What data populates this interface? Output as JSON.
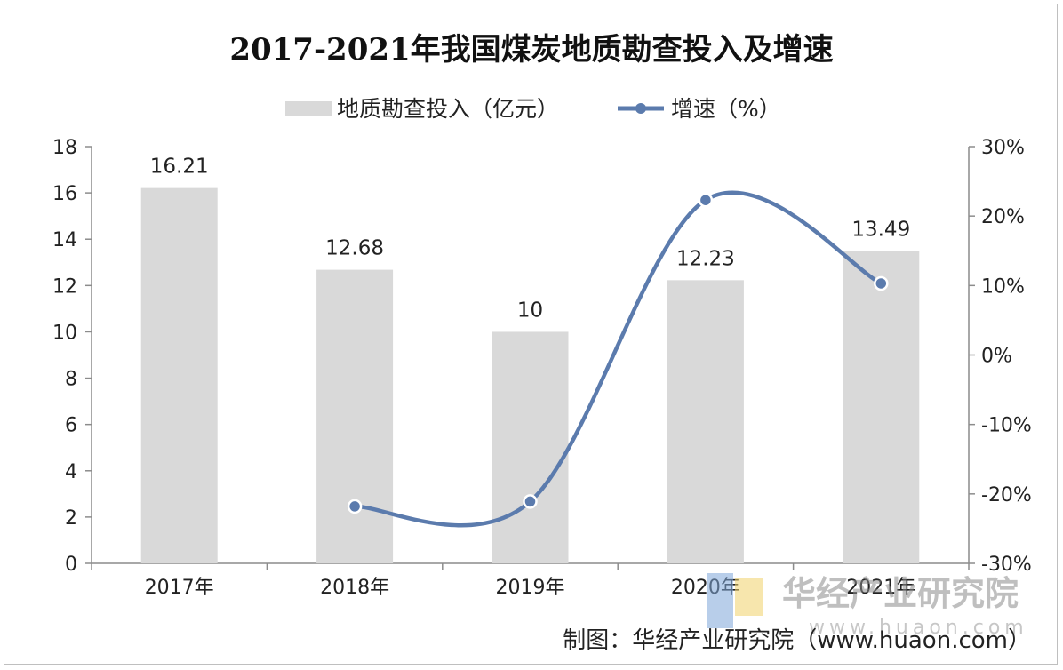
{
  "chart_data": {
    "type": "bar",
    "title": "2017-2021年我国煤炭地质勘查投入及增速",
    "categories": [
      "2017年",
      "2018年",
      "2019年",
      "2020年",
      "2021年"
    ],
    "series": [
      {
        "name": "地质勘查投入（亿元）",
        "type": "bar",
        "axis": "left",
        "values": [
          16.21,
          12.68,
          10,
          12.23,
          13.49
        ],
        "labels": [
          "16.21",
          "12.68",
          "10",
          "12.23",
          "13.49"
        ],
        "color": "#d9d9d9"
      },
      {
        "name": "增速（%）",
        "type": "line",
        "axis": "right",
        "smooth": true,
        "values": [
          null,
          -21.8,
          -21.1,
          22.3,
          10.3
        ],
        "color": "#5b7bad"
      }
    ],
    "y_left": {
      "min": 0,
      "max": 18,
      "step": 2,
      "ticks": [
        "0",
        "2",
        "4",
        "6",
        "8",
        "10",
        "12",
        "14",
        "16",
        "18"
      ]
    },
    "y_right": {
      "min": -30,
      "max": 30,
      "step": 10,
      "ticks": [
        "-30%",
        "-20%",
        "-10%",
        "0%",
        "10%",
        "20%",
        "30%"
      ]
    },
    "grid": false,
    "legend": "top-center"
  },
  "source": "制图：华经产业研究院（www.huaon.com）",
  "watermark": {
    "text": "华经产业研究院",
    "url": "www.huaon.com"
  }
}
